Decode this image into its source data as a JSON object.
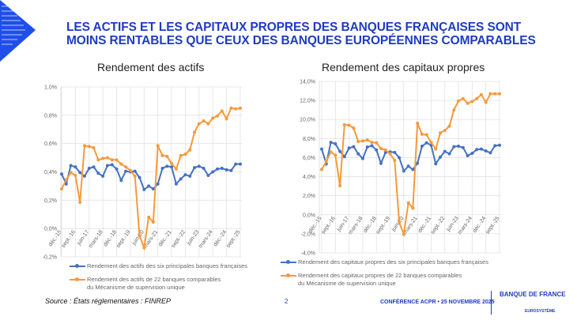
{
  "header": {
    "title_line1": "LES ACTIFS ET LES CAPITAUX PROPRES DES BANQUES FRANÇAISES SONT",
    "title_line2": "MOINS RENTABLES QUE CEUX DES BANQUES EUROPÉENNES COMPARABLES"
  },
  "colors": {
    "brand": "#1f3bc4",
    "french": "#4472c4",
    "ssm": "#f59a3c"
  },
  "chart_data": [
    {
      "type": "line",
      "title": "Rendement des actifs",
      "ylim": [
        -0.2,
        1.0
      ],
      "yticks": [
        "1,0%",
        "0,8%",
        "0,6%",
        "0,4%",
        "0,2%",
        "0,0%",
        "-0,2%"
      ],
      "ytick_values": [
        1.0,
        0.8,
        0.6,
        0.4,
        0.2,
        0.0,
        -0.2
      ],
      "xtick_labels": [
        "déc.-15",
        "sept.-16",
        "juin-17",
        "mars-18",
        "déc.-18",
        "sept.-19",
        "juin-20",
        "mars-21",
        "déc.-21",
        "sept.-22",
        "juin-23",
        "mars-24",
        "déc.-24",
        "sept.-25"
      ],
      "grid": true,
      "legend": "bottom",
      "series": [
        {
          "name": "Rendement des actifs des six principales banques françaises",
          "color": "#4472c4",
          "values": [
            0.385,
            0.315,
            0.445,
            0.435,
            0.395,
            0.37,
            0.425,
            0.435,
            0.39,
            0.37,
            0.445,
            0.45,
            0.42,
            0.34,
            0.405,
            0.4,
            0.405,
            0.36,
            0.275,
            0.3,
            0.28,
            0.315,
            0.425,
            0.44,
            0.435,
            0.315,
            0.35,
            0.38,
            0.37,
            0.43,
            0.44,
            0.425,
            0.375,
            0.4,
            0.42,
            0.425,
            0.415,
            0.41,
            0.455,
            0.455
          ]
        },
        {
          "name": "Rendement des actifs de 22 banques comparables du Mécanisme de supervision unique",
          "color": "#f59a3c",
          "values": [
            0.28,
            0.345,
            0.395,
            0.375,
            0.185,
            0.585,
            0.58,
            0.57,
            0.485,
            0.495,
            0.5,
            0.485,
            0.485,
            0.455,
            0.435,
            0.41,
            0.37,
            -0.05,
            -0.135,
            0.08,
            0.045,
            0.585,
            0.515,
            0.51,
            0.46,
            0.42,
            0.515,
            0.525,
            0.555,
            0.68,
            0.74,
            0.76,
            0.74,
            0.78,
            0.795,
            0.83,
            0.775,
            0.85,
            0.845,
            0.85
          ]
        }
      ]
    },
    {
      "type": "line",
      "title": "Rendement des capitaux propres",
      "ylim": [
        -4,
        14
      ],
      "yticks": [
        "14,0%",
        "12,0%",
        "10,0%",
        "8,0%",
        "6,0%",
        "4,0%",
        "2,0%",
        "0,0%",
        "-2,0%",
        "-4,0%"
      ],
      "ytick_values": [
        14,
        12,
        10,
        8,
        6,
        4,
        2,
        0,
        -2,
        -4
      ],
      "xtick_labels": [
        "déc.-15",
        "sept.-16",
        "juin-17",
        "mars-18",
        "déc.-18",
        "sept.-19",
        "juin-20",
        "mars-21",
        "déc.-21",
        "sept.-22",
        "juin-23",
        "mars-24",
        "déc.-24",
        "sept.-25"
      ],
      "grid": true,
      "legend": "bottom",
      "series": [
        {
          "name": "Rendement des capitaux propres des six principales banques françaises",
          "color": "#4472c4",
          "values": [
            6.9,
            5.35,
            7.6,
            7.45,
            6.65,
            6.1,
            7.0,
            7.15,
            6.4,
            5.9,
            7.1,
            7.25,
            6.8,
            5.4,
            6.55,
            6.6,
            6.55,
            6.0,
            4.6,
            5.1,
            4.75,
            5.4,
            7.2,
            7.55,
            7.3,
            5.35,
            6.05,
            6.65,
            6.4,
            7.15,
            7.2,
            7.05,
            6.2,
            6.45,
            6.85,
            6.9,
            6.7,
            6.5,
            7.25,
            7.3
          ]
        },
        {
          "name": "Rendement des capitaux propres de 22 banques comparables du Mécanisme de supervision unique",
          "color": "#f59a3c",
          "values": [
            4.75,
            5.6,
            6.6,
            6.25,
            3.05,
            9.45,
            9.4,
            9.1,
            7.7,
            7.75,
            7.85,
            7.6,
            7.55,
            6.95,
            6.8,
            6.4,
            5.7,
            -0.8,
            -2.05,
            1.25,
            0.7,
            9.6,
            8.45,
            8.4,
            7.6,
            6.9,
            8.6,
            8.85,
            9.3,
            11.0,
            11.95,
            12.2,
            11.7,
            11.9,
            12.2,
            12.6,
            11.8,
            12.7,
            12.7,
            12.7
          ]
        }
      ]
    }
  ],
  "footer": {
    "source": "Source : États réglementaires : FINREP",
    "page": "2",
    "conference": "CONFÉRENCE ACPR • 25 NOVEMBRE 2025",
    "logo_text": "BANQUE DE FRANCE",
    "logo_sub": "EUROSYSTÈME"
  }
}
